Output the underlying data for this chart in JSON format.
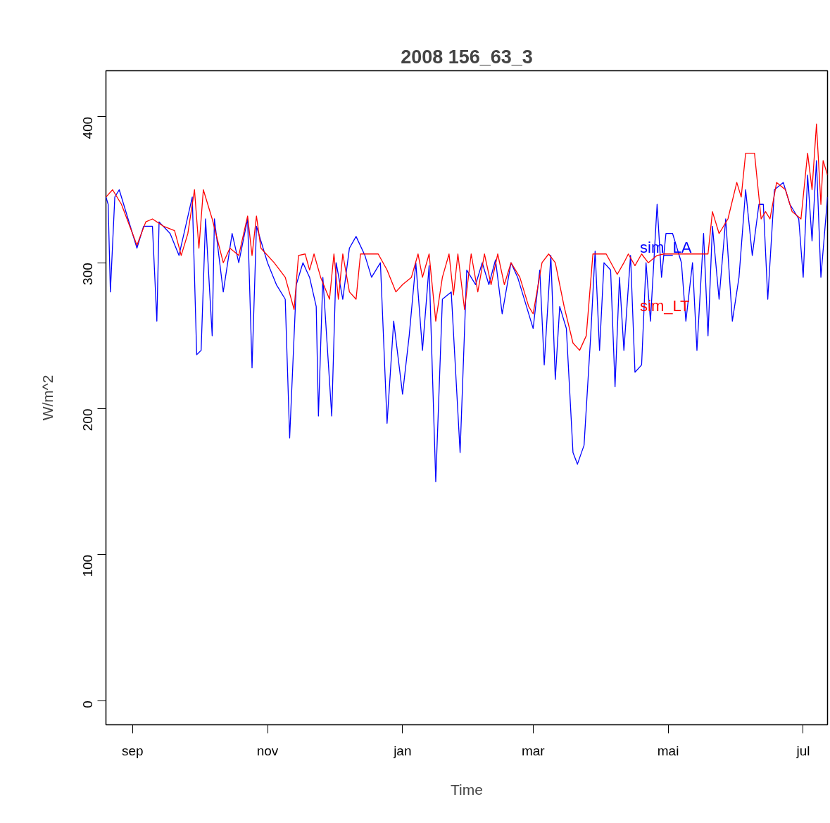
{
  "chart_data": {
    "type": "line",
    "title": "2008 156_63_3",
    "xlabel": "Time",
    "ylabel": "W/m^2",
    "xlim": [
      "2008-08-20",
      "2009-07-12"
    ],
    "ylim": [
      -16.5,
      431.5
    ],
    "yticks": [
      0,
      100,
      200,
      300,
      400
    ],
    "xticks": [
      {
        "value": "2008-09-01",
        "label": "sep"
      },
      {
        "value": "2008-11-01",
        "label": "nov"
      },
      {
        "value": "2009-01-01",
        "label": "jan"
      },
      {
        "value": "2009-03-01",
        "label": "mar"
      },
      {
        "value": "2009-05-01",
        "label": "mai"
      },
      {
        "value": "2009-07-01",
        "label": "jul"
      }
    ],
    "grid": false,
    "legend": false,
    "marker": "none",
    "line_style": "solid",
    "series": [
      {
        "name": "sim_LA",
        "color": "#0000ff",
        "x": [
          "2008-08-20",
          "2008-08-21",
          "2008-08-22",
          "2008-08-24",
          "2008-08-26",
          "2008-08-30",
          "2008-09-03",
          "2008-09-06",
          "2008-09-10",
          "2008-09-12",
          "2008-09-13",
          "2008-09-18",
          "2008-09-22",
          "2008-09-25",
          "2008-09-28",
          "2008-09-30",
          "2008-10-02",
          "2008-10-04",
          "2008-10-07",
          "2008-10-08",
          "2008-10-12",
          "2008-10-16",
          "2008-10-19",
          "2008-10-23",
          "2008-10-25",
          "2008-10-27",
          "2008-11-01",
          "2008-11-05",
          "2008-11-09",
          "2008-11-11",
          "2008-11-14",
          "2008-11-17",
          "2008-11-20",
          "2008-11-23",
          "2008-11-24",
          "2008-11-26",
          "2008-11-30",
          "2008-12-02",
          "2008-12-05",
          "2008-12-08",
          "2008-12-11",
          "2008-12-15",
          "2008-12-18",
          "2008-12-22",
          "2008-12-25",
          "2008-12-28",
          "2009-01-01",
          "2009-01-04",
          "2009-01-07",
          "2009-01-10",
          "2009-01-13",
          "2009-01-16",
          "2009-01-19",
          "2009-01-23",
          "2009-01-27",
          "2009-01-30",
          "2009-02-03",
          "2009-02-06",
          "2009-02-09",
          "2009-02-12",
          "2009-02-15",
          "2009-02-19",
          "2009-02-22",
          "2009-02-26",
          "2009-03-01",
          "2009-03-04",
          "2009-03-06",
          "2009-03-09",
          "2009-03-11",
          "2009-03-13",
          "2009-03-16",
          "2009-03-19",
          "2009-03-21",
          "2009-03-24",
          "2009-03-27",
          "2009-03-29",
          "2009-03-31",
          "2009-04-02",
          "2009-04-05",
          "2009-04-07",
          "2009-04-09",
          "2009-04-11",
          "2009-04-14",
          "2009-04-16",
          "2009-04-19",
          "2009-04-21",
          "2009-04-23",
          "2009-04-26",
          "2009-04-28",
          "2009-04-30",
          "2009-05-03",
          "2009-05-07",
          "2009-05-09",
          "2009-05-12",
          "2009-05-14",
          "2009-05-17",
          "2009-05-19",
          "2009-05-21",
          "2009-05-24",
          "2009-05-27",
          "2009-05-30",
          "2009-06-02",
          "2009-06-05",
          "2009-06-08",
          "2009-06-11",
          "2009-06-13",
          "2009-06-15",
          "2009-06-18",
          "2009-06-22",
          "2009-06-25",
          "2009-06-29",
          "2009-07-01",
          "2009-07-03",
          "2009-07-05",
          "2009-07-07",
          "2009-07-09",
          "2009-07-12"
        ],
        "values": [
          345,
          340,
          280,
          345,
          350,
          330,
          310,
          325,
          325,
          260,
          328,
          320,
          305,
          325,
          345,
          237,
          240,
          330,
          250,
          330,
          280,
          320,
          300,
          330,
          228,
          325,
          300,
          285,
          275,
          180,
          285,
          300,
          290,
          270,
          195,
          290,
          195,
          300,
          275,
          310,
          318,
          305,
          290,
          300,
          190,
          260,
          210,
          250,
          300,
          240,
          298,
          150,
          275,
          280,
          170,
          295,
          285,
          300,
          285,
          302,
          265,
          300,
          290,
          270,
          255,
          295,
          230,
          305,
          220,
          270,
          255,
          170,
          162,
          175,
          250,
          308,
          240,
          300,
          295,
          215,
          290,
          240,
          305,
          225,
          230,
          300,
          260,
          340,
          290,
          320,
          320,
          300,
          260,
          300,
          240,
          320,
          250,
          325,
          275,
          330,
          260,
          290,
          350,
          305,
          340,
          340,
          275,
          350,
          355,
          340,
          330,
          290,
          360,
          315,
          370,
          290,
          345
        ]
      },
      {
        "name": "sim_LT",
        "color": "#ff0000",
        "x": [
          "2008-08-20",
          "2008-08-23",
          "2008-08-27",
          "2008-09-03",
          "2008-09-07",
          "2008-09-10",
          "2008-09-15",
          "2008-09-20",
          "2008-09-23",
          "2008-09-26",
          "2008-09-29",
          "2008-10-01",
          "2008-10-03",
          "2008-10-07",
          "2008-10-12",
          "2008-10-15",
          "2008-10-19",
          "2008-10-23",
          "2008-10-25",
          "2008-10-27",
          "2008-10-29",
          "2008-11-04",
          "2008-11-09",
          "2008-11-13",
          "2008-11-15",
          "2008-11-18",
          "2008-11-20",
          "2008-11-22",
          "2008-11-25",
          "2008-11-29",
          "2008-12-01",
          "2008-12-03",
          "2008-12-05",
          "2008-12-08",
          "2008-12-11",
          "2008-12-13",
          "2008-12-21",
          "2008-12-25",
          "2008-12-29",
          "2009-01-01",
          "2009-01-05",
          "2009-01-08",
          "2009-01-10",
          "2009-01-13",
          "2009-01-16",
          "2009-01-19",
          "2009-01-22",
          "2009-01-24",
          "2009-01-26",
          "2009-01-29",
          "2009-02-01",
          "2009-02-04",
          "2009-02-07",
          "2009-02-10",
          "2009-02-13",
          "2009-02-16",
          "2009-02-19",
          "2009-02-23",
          "2009-02-27",
          "2009-03-01",
          "2009-03-05",
          "2009-03-08",
          "2009-03-11",
          "2009-03-15",
          "2009-03-19",
          "2009-03-22",
          "2009-03-25",
          "2009-03-28",
          "2009-04-03",
          "2009-04-08",
          "2009-04-11",
          "2009-04-13",
          "2009-04-16",
          "2009-04-19",
          "2009-04-22",
          "2009-04-26",
          "2009-04-29",
          "2009-05-19",
          "2009-05-21",
          "2009-05-24",
          "2009-05-28",
          "2009-06-01",
          "2009-06-03",
          "2009-06-05",
          "2009-06-09",
          "2009-06-12",
          "2009-06-14",
          "2009-06-16",
          "2009-06-19",
          "2009-06-23",
          "2009-06-26",
          "2009-06-30",
          "2009-07-03",
          "2009-07-05",
          "2009-07-07",
          "2009-07-09",
          "2009-07-10",
          "2009-07-12"
        ],
        "values": [
          345,
          350,
          340,
          312,
          328,
          330,
          325,
          322,
          305,
          320,
          350,
          310,
          350,
          330,
          300,
          310,
          305,
          332,
          305,
          332,
          310,
          300,
          290,
          268,
          305,
          306,
          295,
          306,
          290,
          275,
          306,
          275,
          306,
          280,
          275,
          306,
          306,
          295,
          280,
          285,
          290,
          306,
          290,
          306,
          260,
          290,
          306,
          278,
          306,
          268,
          306,
          280,
          306,
          285,
          306,
          285,
          300,
          290,
          270,
          265,
          300,
          306,
          300,
          270,
          245,
          240,
          250,
          306,
          306,
          292,
          300,
          306,
          298,
          306,
          300,
          305,
          306,
          306,
          335,
          320,
          330,
          355,
          345,
          375,
          375,
          330,
          335,
          330,
          355,
          350,
          335,
          330,
          375,
          350,
          395,
          340,
          370,
          360
        ]
      }
    ]
  }
}
